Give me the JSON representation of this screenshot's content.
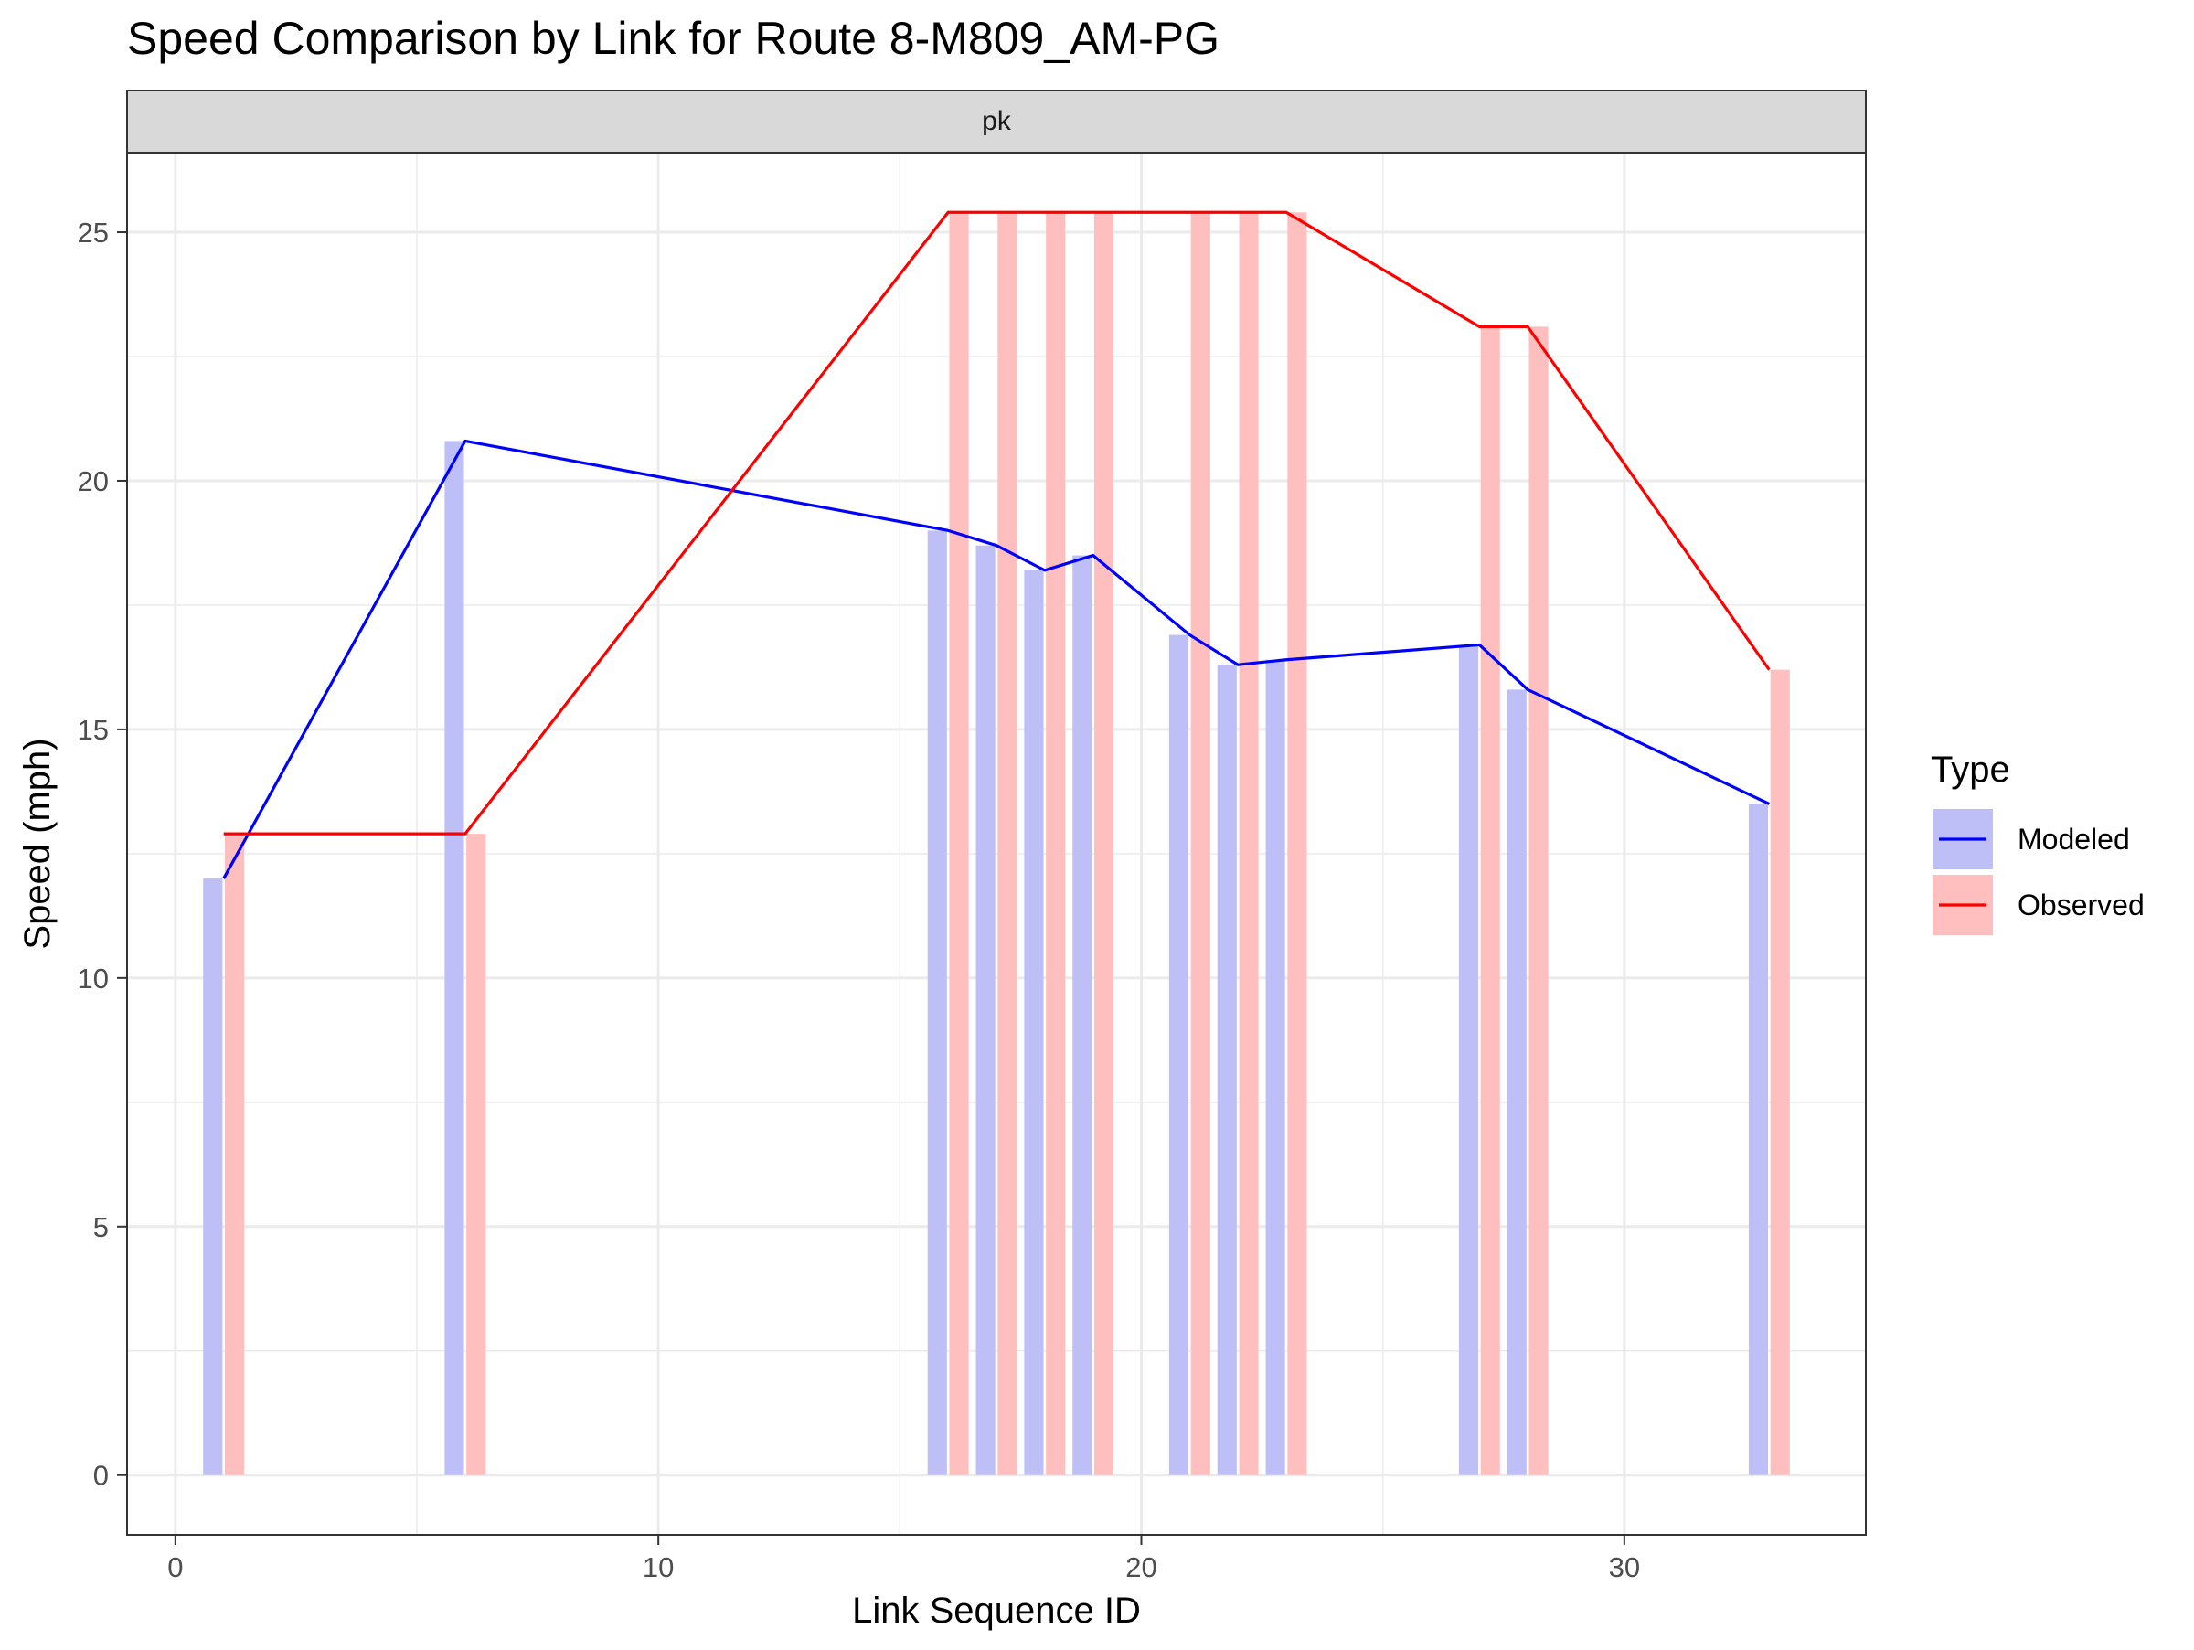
{
  "chart_data": {
    "type": "bar+line",
    "title": "Speed Comparison by Link for Route 8-M809_AM-PG",
    "facet_label": "pk",
    "xlabel": "Link Sequence ID",
    "ylabel": "Speed (mph)",
    "xlim": [
      -1,
      35
    ],
    "ylim": [
      -1.2,
      26.6
    ],
    "x_ticks": [
      0,
      10,
      20,
      30
    ],
    "y_ticks": [
      0,
      5,
      10,
      15,
      20,
      25
    ],
    "grid": true,
    "legend": {
      "title": "Type",
      "placement": "right",
      "entries": [
        "Modeled",
        "Observed"
      ]
    },
    "colors": {
      "Modeled_line": "#0000ff",
      "Modeled_bar": "#bfbff7",
      "Observed_line": "#ff0000",
      "Observed_bar": "#ffbfbf",
      "strip_fill": "#d9d9d9"
    },
    "x": [
      1,
      6,
      16,
      17,
      18,
      19,
      21,
      22,
      23,
      27,
      28,
      33
    ],
    "series": [
      {
        "name": "Modeled",
        "values": [
          12.0,
          20.8,
          19.0,
          18.7,
          18.2,
          18.5,
          16.9,
          16.3,
          16.4,
          16.7,
          15.8,
          13.5
        ]
      },
      {
        "name": "Observed",
        "values": [
          12.9,
          12.9,
          25.4,
          25.4,
          25.4,
          25.4,
          25.4,
          25.4,
          25.4,
          23.1,
          23.1,
          16.2
        ]
      }
    ]
  }
}
